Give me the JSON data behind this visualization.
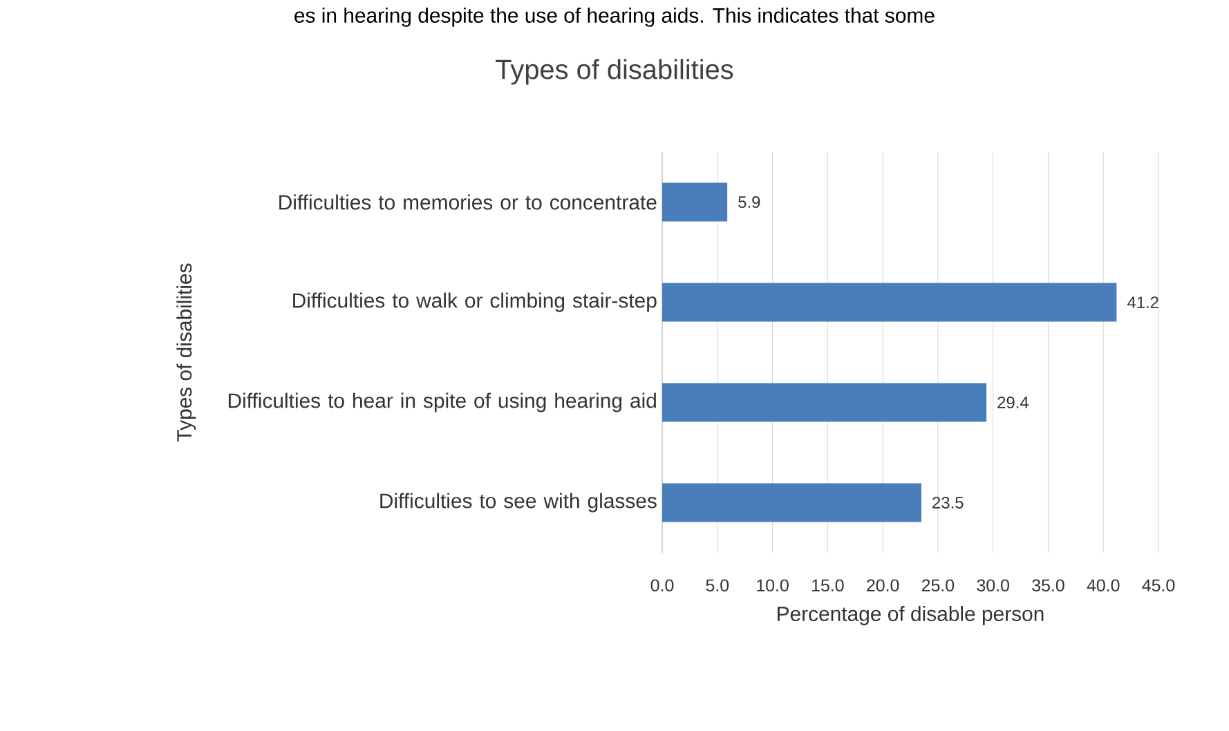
{
  "chart_data": {
    "type": "bar",
    "orientation": "horizontal",
    "title": "Types of disabilities",
    "xlabel": "Percentage of disable person",
    "ylabel": "Types of disabilities",
    "categories": [
      "Difficulties to memories or to concentrate",
      "Difficulties to walk or climbing stair-step",
      "Difficulties to hear in spite of using hearing aid",
      "Difficulties to see with glasses"
    ],
    "values": [
      5.9,
      41.2,
      29.4,
      23.5
    ],
    "color": "#4a7ebb",
    "xlim": [
      0,
      45
    ],
    "xticks": [
      {
        "value": 0,
        "label": "0.0"
      },
      {
        "value": 5,
        "label": "5.0"
      },
      {
        "value": 10,
        "label": "10.0"
      },
      {
        "value": 15,
        "label": "15.0"
      },
      {
        "value": 20,
        "label": "20.0"
      },
      {
        "value": 25,
        "label": "25.0"
      },
      {
        "value": 30,
        "label": "30.0"
      },
      {
        "value": 35,
        "label": "35.0"
      },
      {
        "value": 40,
        "label": "40.0"
      },
      {
        "value": 45,
        "label": "45.0"
      }
    ],
    "grid": "x",
    "data_labels": true,
    "annotations": [
      "es in hearing despite the use of hearing aids. This indicates that some"
    ]
  }
}
